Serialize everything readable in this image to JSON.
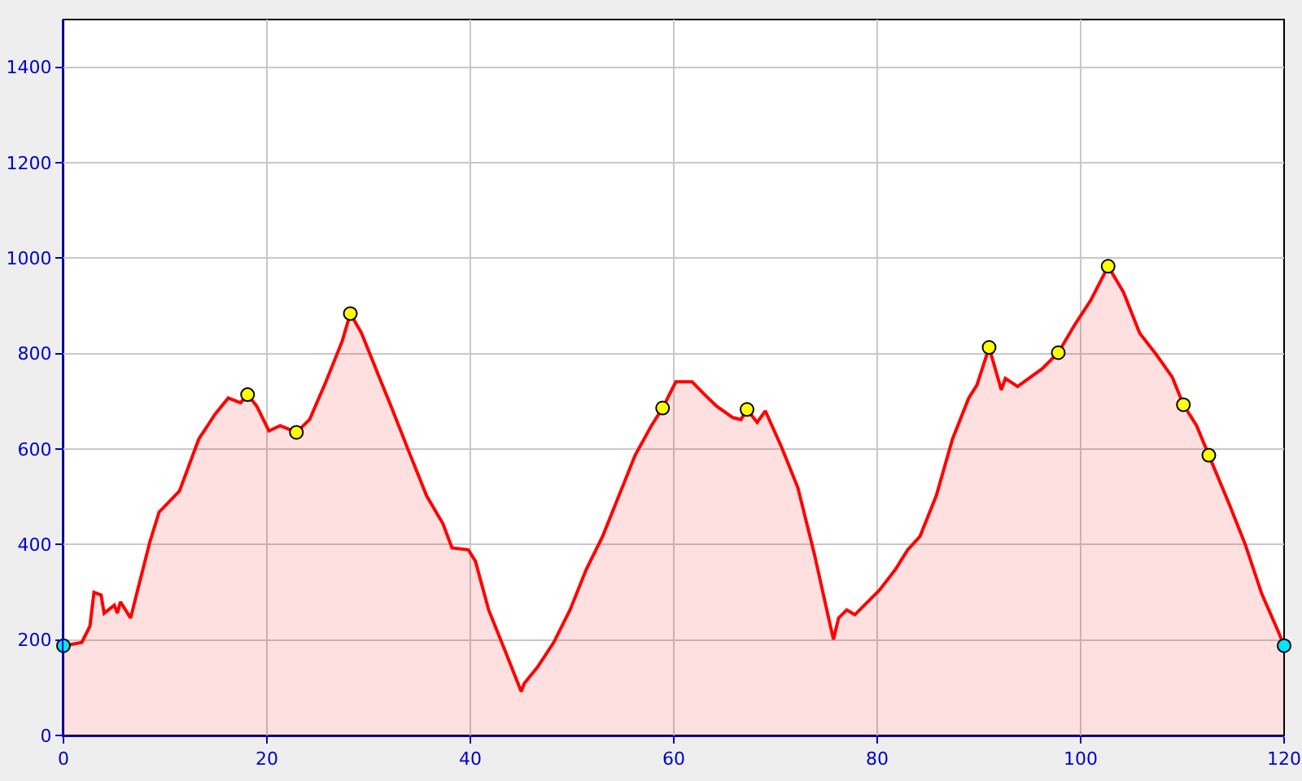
{
  "chart_data": {
    "type": "area",
    "xlim": [
      0,
      120
    ],
    "ylim": [
      0,
      1500
    ],
    "xticks": [
      0,
      20,
      40,
      60,
      80,
      100,
      120
    ],
    "yticks": [
      0,
      200,
      400,
      600,
      800,
      1000,
      1200,
      1400
    ],
    "grid": true,
    "legend": false,
    "line_style": "solid",
    "series": [
      {
        "color": "#ff0000",
        "x": [
          0,
          1.8,
          2.6,
          3.0,
          3.7,
          4,
          5,
          5.3,
          5.6,
          6.6,
          7.2,
          8.5,
          9.4,
          11.4,
          13.3,
          14.9,
          16.2,
          17.4,
          18.1,
          19,
          20.2,
          21.3,
          22.9,
          24.2,
          25.8,
          27.4,
          28.2,
          29.3,
          30.9,
          32.2,
          34.1,
          35.7,
          37.3,
          38.2,
          39.8,
          40.5,
          41.8,
          43.4,
          45,
          45.3,
          46.6,
          48.2,
          49.8,
          51.4,
          53,
          54.6,
          56.2,
          57.8,
          58.9,
          60.2,
          61.8,
          62.9,
          64.2,
          65.8,
          66.6,
          67.2,
          68.2,
          69,
          70.6,
          72.2,
          73.8,
          75.4,
          75.7,
          76.2,
          77,
          77.8,
          78.6,
          80.2,
          81.8,
          83,
          84.2,
          85.8,
          87.4,
          89,
          89.8,
          91,
          92.2,
          92.6,
          93.8,
          96.2,
          97.8,
          99.4,
          101,
          102.7,
          104.2,
          105.8,
          107.4,
          109,
          110.1,
          111.4,
          112.6,
          114.6,
          116.2,
          117.8,
          119.4,
          120
        ],
        "values": [
          188,
          195,
          229,
          300,
          294,
          256,
          273,
          256,
          280,
          246,
          297,
          406,
          468,
          512,
          621,
          673,
          707,
          697,
          714,
          690,
          638,
          649,
          635,
          662,
          741,
          826,
          884,
          843,
          758,
          690,
          587,
          502,
          444,
          393,
          389,
          365,
          263,
          178,
          92,
          109,
          143,
          195,
          263,
          348,
          417,
          502,
          587,
          649,
          686,
          741,
          741,
          717,
          690,
          666,
          662,
          683,
          656,
          680,
          604,
          519,
          382,
          229,
          201,
          246,
          263,
          253,
          270,
          304,
          348,
          389,
          417,
          502,
          621,
          707,
          734,
          813,
          724,
          748,
          731,
          768,
          802,
          860,
          912,
          983,
          929,
          843,
          799,
          751,
          693,
          649,
          587,
          485,
          399,
          297,
          219,
          188
        ]
      },
      {
        "type": "scatter",
        "marker": "circle",
        "x": [
          0,
          18.1,
          22.9,
          28.2,
          58.9,
          67.2,
          91,
          97.8,
          102.7,
          110.1,
          112.6,
          120
        ],
        "values": [
          188,
          714,
          635,
          884,
          686,
          683,
          813,
          802,
          983,
          693,
          587,
          188
        ],
        "colors": [
          "#00e5ff",
          "#ffff00",
          "#ffff00",
          "#ffff00",
          "#ffff00",
          "#ffff00",
          "#ffff00",
          "#ffff00",
          "#ffff00",
          "#ffff00",
          "#ffff00",
          "#00e5ff"
        ]
      }
    ]
  }
}
